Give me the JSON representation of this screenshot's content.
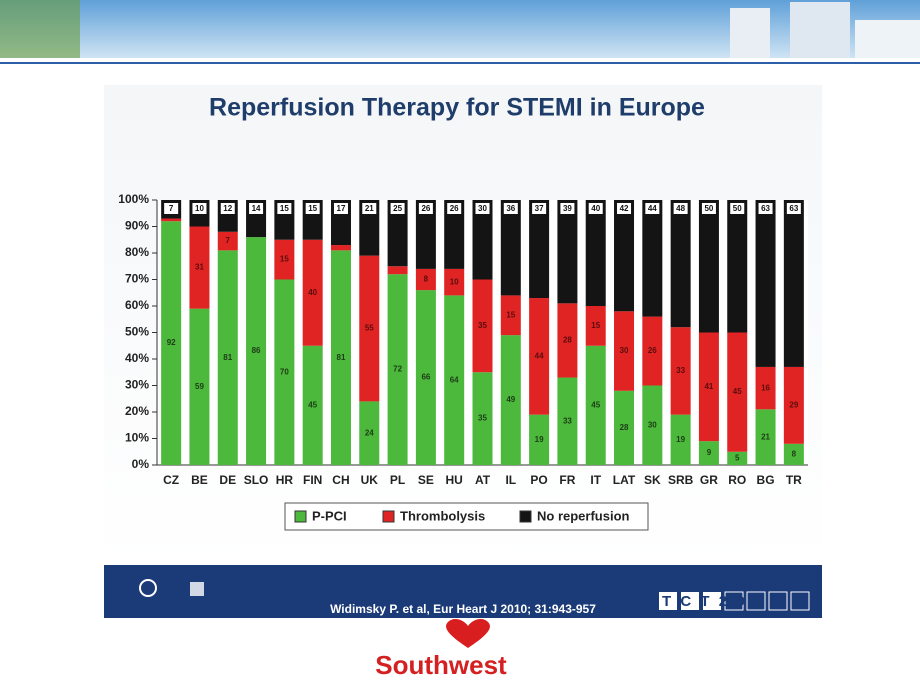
{
  "chart_data": {
    "type": "stacked_bar",
    "title": "Reperfusion Therapy for STEMI in Europe",
    "categories": [
      "CZ",
      "BE",
      "DE",
      "SLO",
      "HR",
      "FIN",
      "CH",
      "UK",
      "PL",
      "SE",
      "HU",
      "AT",
      "IL",
      "PO",
      "FR",
      "IT",
      "LAT",
      "SK",
      "SRB",
      "GR",
      "RO",
      "BG",
      "TR"
    ],
    "series": [
      {
        "name": "P-PCI",
        "color": "#4cb83c",
        "values": [
          92,
          59,
          81,
          86,
          70,
          45,
          81,
          24,
          72,
          66,
          64,
          35,
          49,
          19,
          33,
          45,
          28,
          30,
          19,
          9,
          5,
          21,
          8
        ]
      },
      {
        "name": "Thrombolysis",
        "color": "#e02424",
        "values": [
          1,
          31,
          7,
          0,
          15,
          40,
          2,
          55,
          3,
          8,
          10,
          35,
          15,
          44,
          28,
          15,
          30,
          26,
          33,
          41,
          45,
          16,
          29
        ],
        "value_labels": [
          null,
          "31",
          "7",
          null,
          "15",
          "40",
          null,
          "55",
          null,
          "8",
          "10",
          "35",
          "15",
          "44",
          "28",
          "15",
          "30",
          "26",
          "33",
          "41",
          "45",
          "16",
          "29"
        ]
      },
      {
        "name": "No reperfusion",
        "color": "#141414",
        "values": [
          7,
          10,
          12,
          14,
          15,
          15,
          17,
          21,
          25,
          26,
          26,
          30,
          36,
          37,
          39,
          40,
          42,
          44,
          48,
          50,
          50,
          63,
          63
        ]
      }
    ],
    "ylim": [
      0,
      100
    ],
    "yticks": [
      {
        "value": 0,
        "label": "0%"
      },
      {
        "value": 10,
        "label": "10%"
      },
      {
        "value": 20,
        "label": "20%"
      },
      {
        "value": 30,
        "label": "30%"
      },
      {
        "value": 40,
        "label": "40%"
      },
      {
        "value": 50,
        "label": "50%"
      },
      {
        "value": 60,
        "label": "60%"
      },
      {
        "value": 70,
        "label": "70%"
      },
      {
        "value": 80,
        "label": "80%"
      },
      {
        "value": 90,
        "label": "90%"
      },
      {
        "value": 100,
        "label": "100%"
      }
    ],
    "legend": "bottom"
  },
  "footer": {
    "citation": "Widimsky P. et al, Eur Heart J 2010; 31:943-957",
    "event_logo": "TCT2010"
  },
  "brand": "Southwest"
}
